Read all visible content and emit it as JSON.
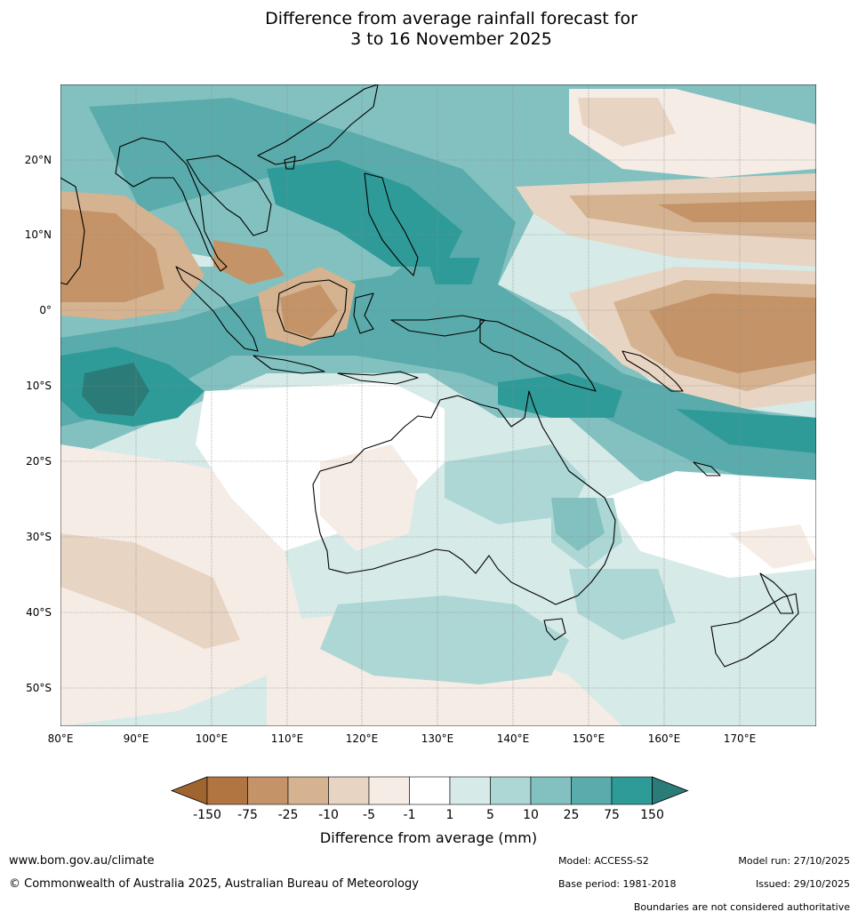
{
  "title_line1": "Difference from average rainfall forecast for",
  "title_line2": "3 to 16 November 2025",
  "map": {
    "lat_labels": [
      "20°N",
      "10°N",
      "0°",
      "10°S",
      "20°S",
      "30°S",
      "40°S",
      "50°S"
    ],
    "lon_labels": [
      "80°E",
      "90°E",
      "100°E",
      "110°E",
      "120°E",
      "130°E",
      "140°E",
      "150°E",
      "160°E",
      "170°E"
    ]
  },
  "colorbar": {
    "title": "Difference from average (mm)",
    "tick_labels": [
      "-150",
      "-75",
      "-25",
      "-10",
      "-5",
      "-1",
      "1",
      "5",
      "10",
      "25",
      "75",
      "150"
    ],
    "colors": [
      "#a0652f",
      "#b07540",
      "#c49468",
      "#d5b290",
      "#e8d4c2",
      "#f5ece6",
      "#ffffff",
      "#d6eae8",
      "#add7d5",
      "#82c1c0",
      "#5aabab",
      "#2f9b98",
      "#2b7b78"
    ]
  },
  "footer": {
    "website": "www.bom.gov.au/climate",
    "copyright": "© Commonwealth of Australia 2025, Australian Bureau of Meteorology",
    "model": "Model: ACCESS-S2",
    "base_period": "Base period: 1981-2018",
    "model_run": "Model run: 27/10/2025",
    "issued": "Issued: 29/10/2025",
    "disclaimer": "Boundaries are not considered authoritative"
  }
}
